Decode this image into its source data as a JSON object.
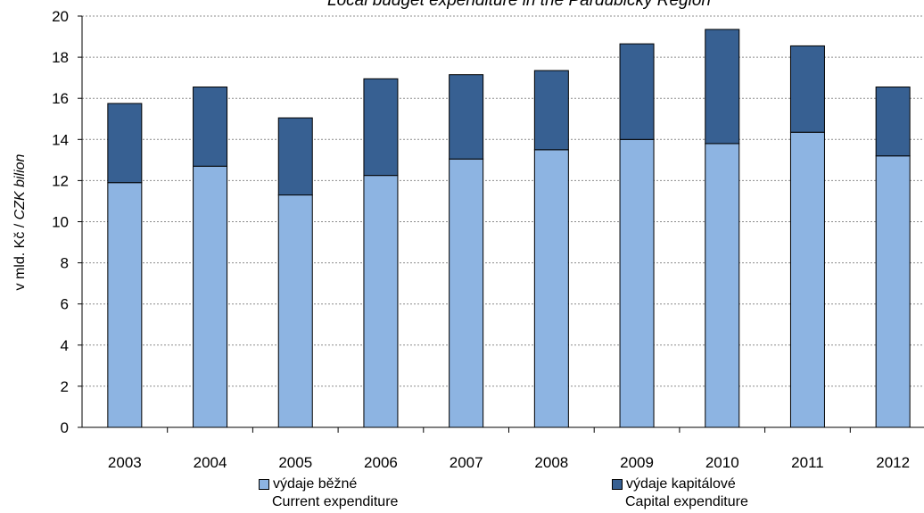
{
  "chart_data": {
    "type": "bar",
    "stacked": true,
    "title": "Local budget expenditure in the Pardubický Region",
    "ylabel_prefix": "v mld. Kč / ",
    "ylabel_suffix": "CZK bilion",
    "ylim": [
      0,
      20
    ],
    "yticks": [
      0,
      2,
      4,
      6,
      8,
      10,
      12,
      14,
      16,
      18,
      20
    ],
    "grid": true,
    "categories": [
      "2003",
      "2004",
      "2005",
      "2006",
      "2007",
      "2008",
      "2009",
      "2010",
      "2011",
      "2012"
    ],
    "series": [
      {
        "name": "výdaje běžné",
        "name_en": "Current expenditure",
        "color": "#8db4e2",
        "values": [
          11.9,
          12.7,
          11.3,
          12.25,
          13.05,
          13.5,
          14.0,
          13.8,
          14.35,
          13.2
        ]
      },
      {
        "name": "výdaje kapitálové",
        "name_en": "Capital expenditure",
        "color": "#376092",
        "values": [
          3.85,
          3.85,
          3.75,
          4.7,
          4.1,
          3.85,
          4.65,
          5.55,
          4.2,
          3.35
        ]
      }
    ],
    "legend_position": "bottom"
  }
}
